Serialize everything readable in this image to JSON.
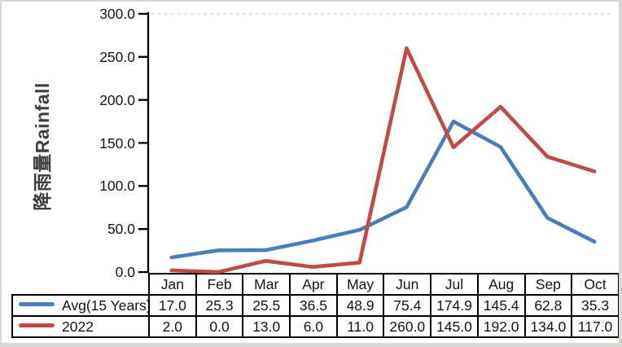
{
  "chart_data": {
    "type": "line",
    "title": "",
    "ylabel": "降雨量Rainfall",
    "xlabel": "",
    "categories": [
      "Jan",
      "Feb",
      "Mar",
      "Apr",
      "May",
      "Jun",
      "Jul",
      "Aug",
      "Sep",
      "Oct"
    ],
    "series": [
      {
        "name": "Avg(15 Years)",
        "color": "#4A7EBB",
        "values": [
          17.0,
          25.3,
          25.5,
          36.5,
          48.9,
          75.4,
          174.9,
          145.4,
          62.8,
          35.3
        ]
      },
      {
        "name": "2022",
        "color": "#BE4B48",
        "values": [
          2.0,
          0.0,
          13.0,
          6.0,
          11.0,
          260.0,
          145.0,
          192.0,
          134.0,
          117.0
        ]
      }
    ],
    "ylim": [
      0,
      300
    ],
    "yticks": [
      300,
      250,
      200,
      150,
      100,
      50,
      0
    ],
    "ytick_labels": [
      "300.0",
      "250.0",
      "200.0",
      "150.0",
      "100.0",
      "50.0",
      "0.0"
    ],
    "grid": "single faint dashed horizontal gridline at 300 only",
    "legend_position": "left column of data table below chart",
    "table_value_format": "one decimal place"
  },
  "colors": {
    "axis": "#000000",
    "table_border": "#000000",
    "gridline": "#dadada",
    "text": "#141414",
    "ytitle_text": "#3f3f3f",
    "frame": "#d8d8d4",
    "background": "#ffffff"
  }
}
